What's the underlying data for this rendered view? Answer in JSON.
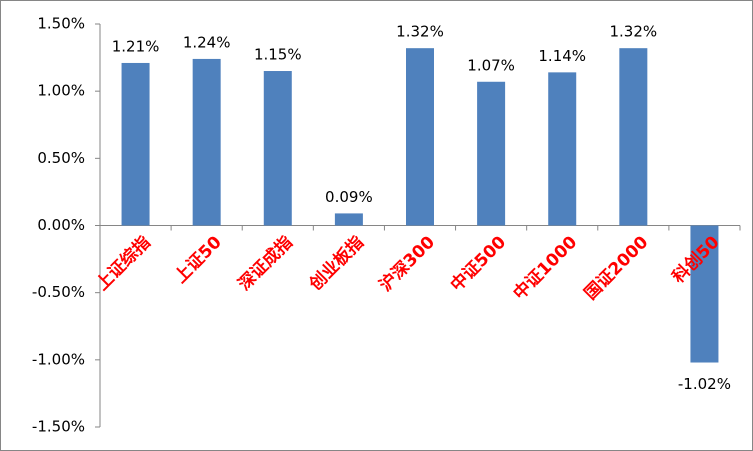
{
  "chart_data": {
    "type": "bar",
    "categories": [
      "上证综指",
      "上证50",
      "深证成指",
      "创业板指",
      "沪深300",
      "中证500",
      "中证1000",
      "国证2000",
      "科创50"
    ],
    "values": [
      1.21,
      1.24,
      1.15,
      0.09,
      1.32,
      1.07,
      1.14,
      1.32,
      -1.02
    ],
    "value_labels": [
      "1.21%",
      "1.24%",
      "1.15%",
      "0.09%",
      "1.32%",
      "1.07%",
      "1.14%",
      "1.32%",
      "-1.02%"
    ],
    "color": "#4f81bd",
    "category_color": "#ff0000",
    "ylim": [
      -1.5,
      1.5
    ],
    "yticks": [
      {
        "value": -1.5,
        "label": "-1.50%"
      },
      {
        "value": -1.0,
        "label": "-1.00%"
      },
      {
        "value": -0.5,
        "label": "-0.50%"
      },
      {
        "value": 0,
        "label": "0.00%"
      },
      {
        "value": 0.5,
        "label": "0.50%"
      },
      {
        "value": 1.0,
        "label": "1.00%"
      },
      {
        "value": 1.5,
        "label": "1.50%"
      }
    ],
    "grid": false
  }
}
